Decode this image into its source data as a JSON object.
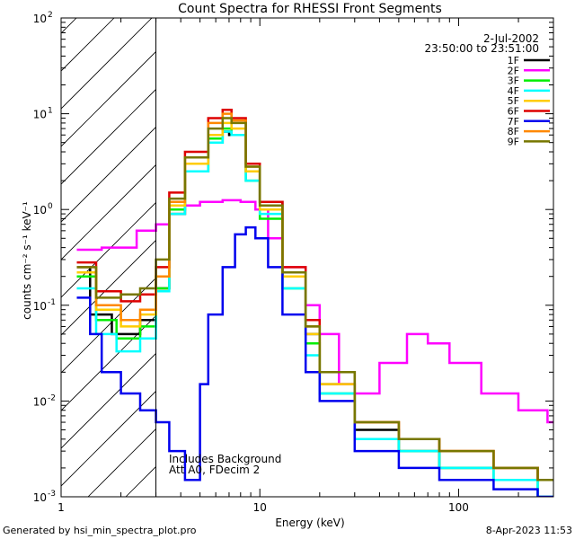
{
  "chart_data": {
    "type": "line",
    "title": "Count Spectra for RHESSI Front Segments",
    "xlabel": "Energy (keV)",
    "ylabel": "counts cm⁻² s⁻¹ keV⁻¹",
    "xscale": "log",
    "yscale": "log",
    "xlim": [
      1,
      300
    ],
    "ylim": [
      0.001,
      100
    ],
    "x_ticks": [
      {
        "value": 1,
        "label": "1"
      },
      {
        "value": 10,
        "label": "10"
      },
      {
        "value": 100,
        "label": "100"
      }
    ],
    "y_ticks": [
      {
        "value": 0.001,
        "base": "10",
        "exp": "-3"
      },
      {
        "value": 0.01,
        "base": "10",
        "exp": "-2"
      },
      {
        "value": 0.1,
        "base": "10",
        "exp": "-1"
      },
      {
        "value": 1,
        "base": "10",
        "exp": "0"
      },
      {
        "value": 10,
        "base": "10",
        "exp": "1"
      },
      {
        "value": 100,
        "base": "10",
        "exp": "2"
      }
    ],
    "date": "2-Jul-2002",
    "time_range": "23:50:00 to 23:51:00",
    "hatched_region_max_keV": 3,
    "annotation_lines": [
      "Includes Background",
      "Att A0, FDecim 2"
    ],
    "legend_position": "top-right",
    "series": [
      {
        "name": "1F",
        "color": "#000000",
        "points": [
          [
            1.2,
            0.25
          ],
          [
            1.4,
            0.08
          ],
          [
            1.8,
            0.05
          ],
          [
            2.5,
            0.07
          ],
          [
            3.0,
            0.15
          ],
          [
            3.5,
            0.9
          ],
          [
            4.2,
            2.5
          ],
          [
            5.5,
            5.0
          ],
          [
            6.5,
            6.5
          ],
          [
            7.0,
            6.0
          ],
          [
            8.5,
            2.5
          ],
          [
            10,
            1.2
          ],
          [
            13,
            0.2
          ],
          [
            17,
            0.05
          ],
          [
            20,
            0.015
          ],
          [
            30,
            0.005
          ],
          [
            50,
            0.003
          ],
          [
            80,
            0.002
          ],
          [
            150,
            0.002
          ],
          [
            250,
            0.0015
          ]
        ]
      },
      {
        "name": "2F",
        "color": "#ff00ff",
        "points": [
          [
            1.2,
            0.38
          ],
          [
            1.6,
            0.4
          ],
          [
            2.4,
            0.6
          ],
          [
            3.0,
            0.7
          ],
          [
            3.5,
            1.1
          ],
          [
            5,
            1.2
          ],
          [
            6.5,
            1.25
          ],
          [
            8,
            1.2
          ],
          [
            9.5,
            1.0
          ],
          [
            11,
            0.5
          ],
          [
            13,
            0.25
          ],
          [
            17,
            0.1
          ],
          [
            20,
            0.05
          ],
          [
            25,
            0.015
          ],
          [
            30,
            0.012
          ],
          [
            40,
            0.025
          ],
          [
            55,
            0.05
          ],
          [
            70,
            0.04
          ],
          [
            90,
            0.025
          ],
          [
            130,
            0.012
          ],
          [
            200,
            0.008
          ],
          [
            280,
            0.006
          ]
        ]
      },
      {
        "name": "3F",
        "color": "#00ee00",
        "points": [
          [
            1.2,
            0.2
          ],
          [
            1.5,
            0.07
          ],
          [
            1.9,
            0.045
          ],
          [
            2.5,
            0.06
          ],
          [
            3.0,
            0.15
          ],
          [
            3.5,
            1.0
          ],
          [
            4.2,
            2.5
          ],
          [
            5.5,
            5.5
          ],
          [
            6.5,
            7.0
          ],
          [
            7.2,
            6.0
          ],
          [
            8.5,
            2.0
          ],
          [
            10,
            0.8
          ],
          [
            13,
            0.15
          ],
          [
            17,
            0.04
          ],
          [
            20,
            0.012
          ],
          [
            30,
            0.004
          ],
          [
            50,
            0.003
          ],
          [
            80,
            0.002
          ],
          [
            150,
            0.0015
          ],
          [
            250,
            0.001
          ]
        ]
      },
      {
        "name": "4F",
        "color": "#00ffff",
        "points": [
          [
            1.2,
            0.15
          ],
          [
            1.5,
            0.05
          ],
          [
            1.9,
            0.033
          ],
          [
            2.5,
            0.045
          ],
          [
            3.0,
            0.14
          ],
          [
            3.5,
            0.9
          ],
          [
            4.2,
            2.5
          ],
          [
            5.5,
            5.0
          ],
          [
            6.5,
            6.5
          ],
          [
            7.2,
            6.0
          ],
          [
            8.5,
            2.0
          ],
          [
            10,
            0.9
          ],
          [
            13,
            0.15
          ],
          [
            17,
            0.03
          ],
          [
            20,
            0.012
          ],
          [
            30,
            0.004
          ],
          [
            50,
            0.003
          ],
          [
            80,
            0.002
          ],
          [
            150,
            0.0015
          ],
          [
            250,
            0.001
          ]
        ]
      },
      {
        "name": "5F",
        "color": "#ffcc00",
        "points": [
          [
            1.2,
            0.22
          ],
          [
            1.5,
            0.09
          ],
          [
            2.0,
            0.06
          ],
          [
            2.5,
            0.08
          ],
          [
            3.0,
            0.2
          ],
          [
            3.5,
            1.1
          ],
          [
            4.2,
            3.0
          ],
          [
            5.5,
            6.0
          ],
          [
            6.5,
            8.0
          ],
          [
            7.2,
            7.0
          ],
          [
            8.5,
            2.5
          ],
          [
            10,
            1.0
          ],
          [
            13,
            0.2
          ],
          [
            17,
            0.05
          ],
          [
            20,
            0.015
          ],
          [
            30,
            0.006
          ],
          [
            50,
            0.004
          ],
          [
            80,
            0.003
          ],
          [
            150,
            0.002
          ],
          [
            250,
            0.0015
          ]
        ]
      },
      {
        "name": "6F",
        "color": "#dd0000",
        "points": [
          [
            1.2,
            0.28
          ],
          [
            1.5,
            0.14
          ],
          [
            2.0,
            0.11
          ],
          [
            2.5,
            0.13
          ],
          [
            3.0,
            0.25
          ],
          [
            3.5,
            1.5
          ],
          [
            4.2,
            4.0
          ],
          [
            5.5,
            9.0
          ],
          [
            6.5,
            11.0
          ],
          [
            7.2,
            9.0
          ],
          [
            8.5,
            3.0
          ],
          [
            10,
            1.2
          ],
          [
            13,
            0.25
          ],
          [
            17,
            0.07
          ],
          [
            20,
            0.02
          ],
          [
            30,
            0.006
          ],
          [
            50,
            0.004
          ],
          [
            80,
            0.003
          ],
          [
            150,
            0.002
          ],
          [
            250,
            0.0015
          ]
        ]
      },
      {
        "name": "7F",
        "color": "#0000ee",
        "points": [
          [
            1.2,
            0.12
          ],
          [
            1.4,
            0.05
          ],
          [
            1.6,
            0.02
          ],
          [
            2.0,
            0.012
          ],
          [
            2.5,
            0.008
          ],
          [
            3.0,
            0.006
          ],
          [
            3.5,
            0.003
          ],
          [
            4.2,
            0.0015
          ],
          [
            5.0,
            0.015
          ],
          [
            5.5,
            0.08
          ],
          [
            6.5,
            0.25
          ],
          [
            7.5,
            0.55
          ],
          [
            8.5,
            0.65
          ],
          [
            9.5,
            0.5
          ],
          [
            11,
            0.25
          ],
          [
            13,
            0.08
          ],
          [
            17,
            0.02
          ],
          [
            20,
            0.01
          ],
          [
            30,
            0.003
          ],
          [
            50,
            0.002
          ],
          [
            80,
            0.0015
          ],
          [
            150,
            0.0012
          ],
          [
            250,
            0.001
          ]
        ]
      },
      {
        "name": "8F",
        "color": "#ff8800",
        "points": [
          [
            1.2,
            0.25
          ],
          [
            1.5,
            0.1
          ],
          [
            2.0,
            0.07
          ],
          [
            2.5,
            0.09
          ],
          [
            3.0,
            0.2
          ],
          [
            3.5,
            1.2
          ],
          [
            4.2,
            3.5
          ],
          [
            5.5,
            8.0
          ],
          [
            6.5,
            10.0
          ],
          [
            7.2,
            8.5
          ],
          [
            8.5,
            2.8
          ],
          [
            10,
            1.1
          ],
          [
            13,
            0.22
          ],
          [
            17,
            0.06
          ],
          [
            20,
            0.02
          ],
          [
            30,
            0.006
          ],
          [
            50,
            0.004
          ],
          [
            80,
            0.003
          ],
          [
            150,
            0.002
          ],
          [
            250,
            0.0015
          ]
        ]
      },
      {
        "name": "9F",
        "color": "#777700",
        "points": [
          [
            1.2,
            0.25
          ],
          [
            1.5,
            0.12
          ],
          [
            2.0,
            0.13
          ],
          [
            2.5,
            0.15
          ],
          [
            3.0,
            0.3
          ],
          [
            3.5,
            1.3
          ],
          [
            4.2,
            3.5
          ],
          [
            5.5,
            7.0
          ],
          [
            6.5,
            9.0
          ],
          [
            7.2,
            8.0
          ],
          [
            8.5,
            2.8
          ],
          [
            10,
            1.1
          ],
          [
            13,
            0.22
          ],
          [
            17,
            0.06
          ],
          [
            20,
            0.02
          ],
          [
            30,
            0.006
          ],
          [
            50,
            0.004
          ],
          [
            80,
            0.003
          ],
          [
            150,
            0.002
          ],
          [
            250,
            0.0015
          ]
        ]
      }
    ]
  },
  "footer": {
    "generated_by": "Generated by hsi_min_spectra_plot.pro",
    "timestamp": "8-Apr-2023 11:53"
  }
}
